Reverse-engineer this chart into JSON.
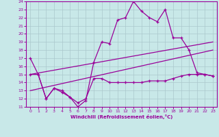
{
  "xlabel": "Windchill (Refroidissement éolien,°C)",
  "background_color": "#c8e8e8",
  "grid_color": "#aac8cc",
  "line_color": "#990099",
  "xlim": [
    -0.5,
    23.5
  ],
  "ylim": [
    11,
    24
  ],
  "xticks": [
    0,
    1,
    2,
    3,
    4,
    5,
    6,
    7,
    8,
    9,
    10,
    11,
    12,
    13,
    14,
    15,
    16,
    17,
    18,
    19,
    20,
    21,
    22,
    23
  ],
  "yticks": [
    11,
    12,
    13,
    14,
    15,
    16,
    17,
    18,
    19,
    20,
    21,
    22,
    23,
    24
  ],
  "line1_x": [
    0,
    1,
    2,
    3,
    4,
    5,
    6,
    7,
    8,
    9,
    10,
    11,
    12,
    13,
    14,
    15,
    16,
    17,
    18,
    19,
    20,
    21,
    22,
    23
  ],
  "line1_y": [
    17,
    15,
    12,
    13.3,
    13,
    12.2,
    11,
    11.8,
    16.5,
    19,
    18.8,
    21.7,
    22.0,
    24,
    22.8,
    22.0,
    21.5,
    23,
    19.5,
    19.5,
    18,
    15.2,
    15,
    14.8
  ],
  "line2_x": [
    0,
    1,
    2,
    3,
    4,
    5,
    6,
    7,
    8,
    9,
    10,
    11,
    12,
    13,
    14,
    15,
    16,
    17,
    18,
    19,
    20,
    21,
    22,
    23
  ],
  "line2_y": [
    15,
    15,
    12,
    13.3,
    12.8,
    12.2,
    11.5,
    12,
    14.5,
    14.5,
    14,
    14,
    14,
    14,
    14,
    14.2,
    14.2,
    14.2,
    14.5,
    14.8,
    15,
    15,
    15,
    14.8
  ],
  "line3_x": [
    0,
    23
  ],
  "line3_y": [
    15,
    19
  ],
  "line4_x": [
    0,
    23
  ],
  "line4_y": [
    13,
    18
  ]
}
